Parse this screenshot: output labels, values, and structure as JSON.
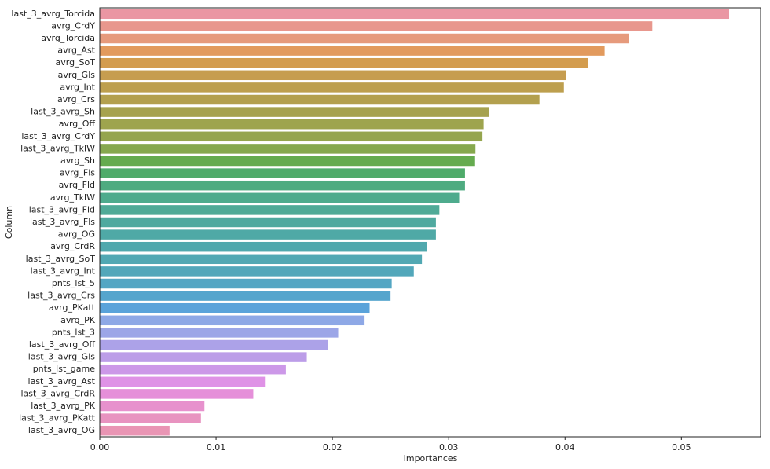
{
  "chart_data": {
    "type": "barh",
    "xlabel": "Importances",
    "ylabel": "Column",
    "categories": [
      "last_3_avrg_Torcida",
      "avrg_CrdY",
      "avrg_Torcida",
      "avrg_Ast",
      "avrg_SoT",
      "avrg_Gls",
      "avrg_Int",
      "avrg_Crs",
      "last_3_avrg_Sh",
      "avrg_Off",
      "last_3_avrg_CrdY",
      "last_3_avrg_TklW",
      "avrg_Sh",
      "avrg_Fls",
      "avrg_Fld",
      "avrg_TklW",
      "last_3_avrg_Fld",
      "last_3_avrg_Fls",
      "avrg_OG",
      "avrg_CrdR",
      "last_3_avrg_SoT",
      "last_3_avrg_Int",
      "pnts_lst_5",
      "last_3_avrg_Crs",
      "avrg_PKatt",
      "avrg_PK",
      "pnts_lst_3",
      "last_3_avrg_Off",
      "last_3_avrg_Gls",
      "pnts_lst_game",
      "last_3_avrg_Ast",
      "last_3_avrg_CrdR",
      "last_3_avrg_PK",
      "last_3_avrg_PKatt",
      "last_3_avrg_OG"
    ],
    "values": [
      0.0541,
      0.0475,
      0.0455,
      0.0434,
      0.042,
      0.0401,
      0.0399,
      0.0378,
      0.0335,
      0.033,
      0.0329,
      0.0323,
      0.0322,
      0.0314,
      0.0314,
      0.0309,
      0.0292,
      0.0289,
      0.0289,
      0.0281,
      0.0277,
      0.027,
      0.0251,
      0.025,
      0.0232,
      0.0227,
      0.0205,
      0.0196,
      0.0178,
      0.016,
      0.0142,
      0.0132,
      0.009,
      0.0087,
      0.006
    ],
    "colors": [
      "#ea96a3",
      "#e8978d",
      "#e69a7c",
      "#e29a5d",
      "#d39c4e",
      "#c69d4f",
      "#bd9f4e",
      "#b3a04e",
      "#a6a24e",
      "#9ea44e",
      "#95a54e",
      "#86a84e",
      "#65ab4f",
      "#4fab6a",
      "#4eab80",
      "#4eab8d",
      "#4faa97",
      "#4fa99f",
      "#4fa9a6",
      "#50a8ad",
      "#51a8b3",
      "#52a7ba",
      "#53a6c3",
      "#55a5cd",
      "#5aa3da",
      "#8ea8e6",
      "#9ca6e7",
      "#aca2e8",
      "#bc9de8",
      "#cc98e8",
      "#df92e6",
      "#e58fd9",
      "#e791cd",
      "#e893c0",
      "#e995b4"
    ],
    "xlim": [
      0,
      0.0568
    ],
    "xticks": [
      {
        "value": 0,
        "label": "0.00"
      },
      0.01,
      0.02,
      0.03,
      0.04,
      0.05
    ]
  }
}
